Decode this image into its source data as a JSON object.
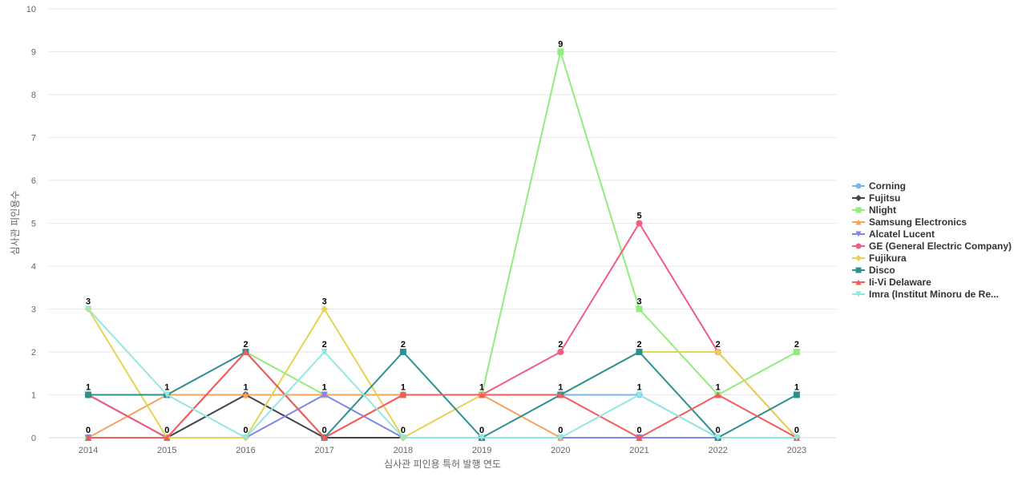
{
  "chart_data": {
    "type": "line",
    "xlabel": "심사관 피인용 특허 발행 연도",
    "ylabel": "심사관 피인용수",
    "categories": [
      "2014",
      "2015",
      "2016",
      "2017",
      "2018",
      "2019",
      "2020",
      "2021",
      "2022",
      "2023"
    ],
    "ylim": [
      0,
      10
    ],
    "yticks": [
      0,
      1,
      2,
      3,
      4,
      5,
      6,
      7,
      8,
      9,
      10
    ],
    "grid": true,
    "legend_position": "right",
    "series": [
      {
        "name": "Corning",
        "color": "#7cb5ec",
        "marker": "circle",
        "values": [
          1,
          1,
          1,
          1,
          1,
          1,
          1,
          1,
          0,
          0
        ]
      },
      {
        "name": "Fujitsu",
        "color": "#434348",
        "marker": "diamond",
        "values": [
          1,
          0,
          1,
          0,
          0,
          0,
          0,
          0,
          0,
          0
        ]
      },
      {
        "name": "Nlight",
        "color": "#90ed7d",
        "marker": "square",
        "values": [
          0,
          0,
          2,
          1,
          1,
          1,
          9,
          3,
          1,
          2
        ]
      },
      {
        "name": "Samsung Electronics",
        "color": "#f7a35c",
        "marker": "triangle",
        "values": [
          0,
          1,
          1,
          1,
          1,
          1,
          0,
          0,
          0,
          0
        ]
      },
      {
        "name": "Alcatel Lucent",
        "color": "#8085e9",
        "marker": "triangle-down",
        "values": [
          0,
          0,
          0,
          1,
          0,
          0,
          0,
          0,
          0,
          0
        ]
      },
      {
        "name": "GE (General Electric Company)",
        "color": "#f15c80",
        "marker": "circle",
        "values": [
          1,
          0,
          2,
          0,
          1,
          1,
          2,
          5,
          2,
          0
        ]
      },
      {
        "name": "Fujikura",
        "color": "#e4d354",
        "marker": "diamond",
        "values": [
          3,
          0,
          0,
          3,
          0,
          1,
          1,
          2,
          2,
          0
        ]
      },
      {
        "name": "Disco",
        "color": "#2b908f",
        "marker": "square",
        "values": [
          1,
          1,
          2,
          0,
          2,
          0,
          1,
          2,
          0,
          1
        ]
      },
      {
        "name": "Ii-Vi Delaware",
        "color": "#f45b5b",
        "marker": "triangle",
        "values": [
          0,
          0,
          2,
          0,
          1,
          1,
          1,
          0,
          1,
          0
        ]
      },
      {
        "name": "Imra (Institut Minoru de Re...",
        "color": "#91e8e1",
        "marker": "triangle-down",
        "values": [
          3,
          1,
          0,
          2,
          0,
          0,
          0,
          1,
          0,
          0
        ]
      }
    ],
    "data_labels": [
      {
        "category": "2014",
        "text": "3",
        "value": 3
      },
      {
        "category": "2014",
        "text": "1",
        "value": 1
      },
      {
        "category": "2014",
        "text": "0",
        "value": 0
      },
      {
        "category": "2015",
        "text": "1",
        "value": 1
      },
      {
        "category": "2015",
        "text": "0",
        "value": 0
      },
      {
        "category": "2016",
        "text": "2",
        "value": 2
      },
      {
        "category": "2016",
        "text": "1",
        "value": 1
      },
      {
        "category": "2016",
        "text": "0",
        "value": 0
      },
      {
        "category": "2017",
        "text": "3",
        "value": 3
      },
      {
        "category": "2017",
        "text": "2",
        "value": 2
      },
      {
        "category": "2017",
        "text": "1",
        "value": 1
      },
      {
        "category": "2017",
        "text": "0",
        "value": 0
      },
      {
        "category": "2018",
        "text": "2",
        "value": 2
      },
      {
        "category": "2018",
        "text": "1",
        "value": 1
      },
      {
        "category": "2018",
        "text": "0",
        "value": 0
      },
      {
        "category": "2019",
        "text": "1",
        "value": 1
      },
      {
        "category": "2019",
        "text": "0",
        "value": 0
      },
      {
        "category": "2020",
        "text": "9",
        "value": 9
      },
      {
        "category": "2020",
        "text": "2",
        "value": 2
      },
      {
        "category": "2020",
        "text": "1",
        "value": 1
      },
      {
        "category": "2020",
        "text": "0",
        "value": 0
      },
      {
        "category": "2021",
        "text": "5",
        "value": 5
      },
      {
        "category": "2021",
        "text": "3",
        "value": 3
      },
      {
        "category": "2021",
        "text": "2",
        "value": 2
      },
      {
        "category": "2021",
        "text": "1",
        "value": 1
      },
      {
        "category": "2021",
        "text": "0",
        "value": 0
      },
      {
        "category": "2022",
        "text": "2",
        "value": 2
      },
      {
        "category": "2022",
        "text": "1",
        "value": 1
      },
      {
        "category": "2022",
        "text": "0",
        "value": 0
      },
      {
        "category": "2023",
        "text": "2",
        "value": 2
      },
      {
        "category": "2023",
        "text": "1",
        "value": 1
      },
      {
        "category": "2023",
        "text": "0",
        "value": 0
      }
    ]
  }
}
